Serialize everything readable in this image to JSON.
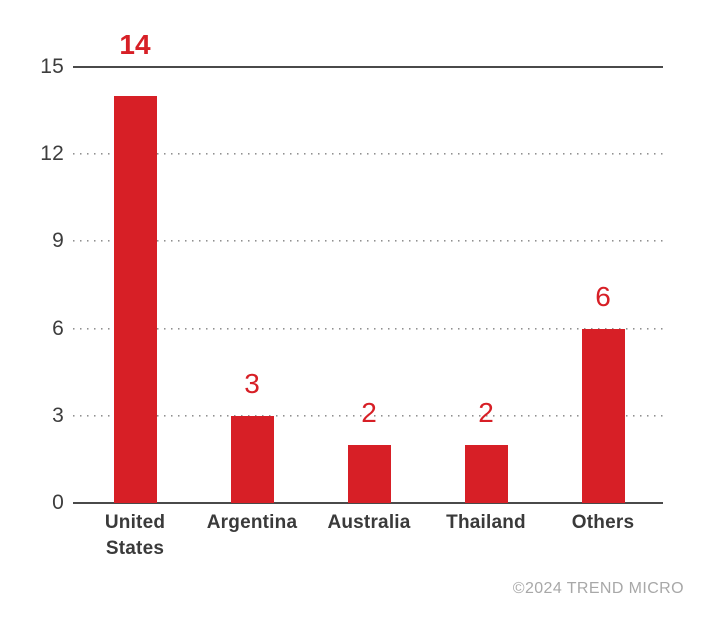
{
  "chart_data": {
    "type": "bar",
    "title": "",
    "xlabel": "",
    "ylabel": "",
    "categories": [
      "United States",
      "Argentina",
      "Australia",
      "Thailand",
      "Others"
    ],
    "values": [
      14,
      3,
      2,
      2,
      6
    ],
    "value_labels": [
      "14",
      "3",
      "2",
      "2",
      "6"
    ],
    "bold_value_index": 0,
    "ylim": [
      0,
      15
    ],
    "yticks": [
      0,
      3,
      6,
      9,
      12,
      15
    ],
    "grid": "horizontal-dotted",
    "legend": "none",
    "solid_gridline_at": 15,
    "bar_color": "#d71f26"
  },
  "footer": {
    "copyright": "©2024 TREND MICRO"
  },
  "colors": {
    "bar": "#d71f26",
    "value_label": "#d71f26",
    "axis_line": "#4a4a4a",
    "grid_dots": "#909090",
    "axis_text": "#3d3d3d",
    "category_text": "#3a3a3a",
    "copyright_text": "#a8a8a8",
    "background": "#ffffff"
  }
}
